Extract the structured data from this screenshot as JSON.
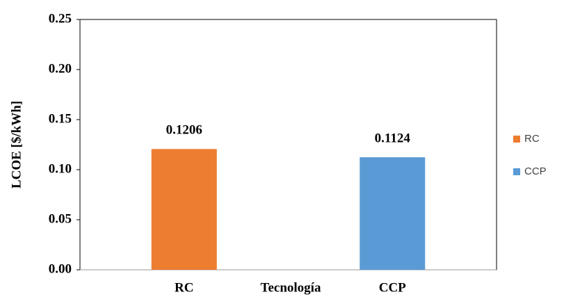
{
  "chart_data": {
    "type": "bar",
    "categories": [
      "RC",
      "CCP"
    ],
    "values": [
      0.1206,
      0.1124
    ],
    "colors": [
      "#ed7d31",
      "#5b9bd5"
    ],
    "x_label": "Tecnología",
    "y_label": "LCOE [$/kWh]",
    "ylim": [
      0,
      0.25
    ],
    "yticks": [
      {
        "value": 0,
        "label": "0.00"
      },
      0.05,
      {
        "value": 0.1,
        "label": "0.10"
      },
      0.15,
      {
        "value": 0.2,
        "label": "0.20"
      },
      0.25
    ],
    "grid": false,
    "legend": "right"
  }
}
